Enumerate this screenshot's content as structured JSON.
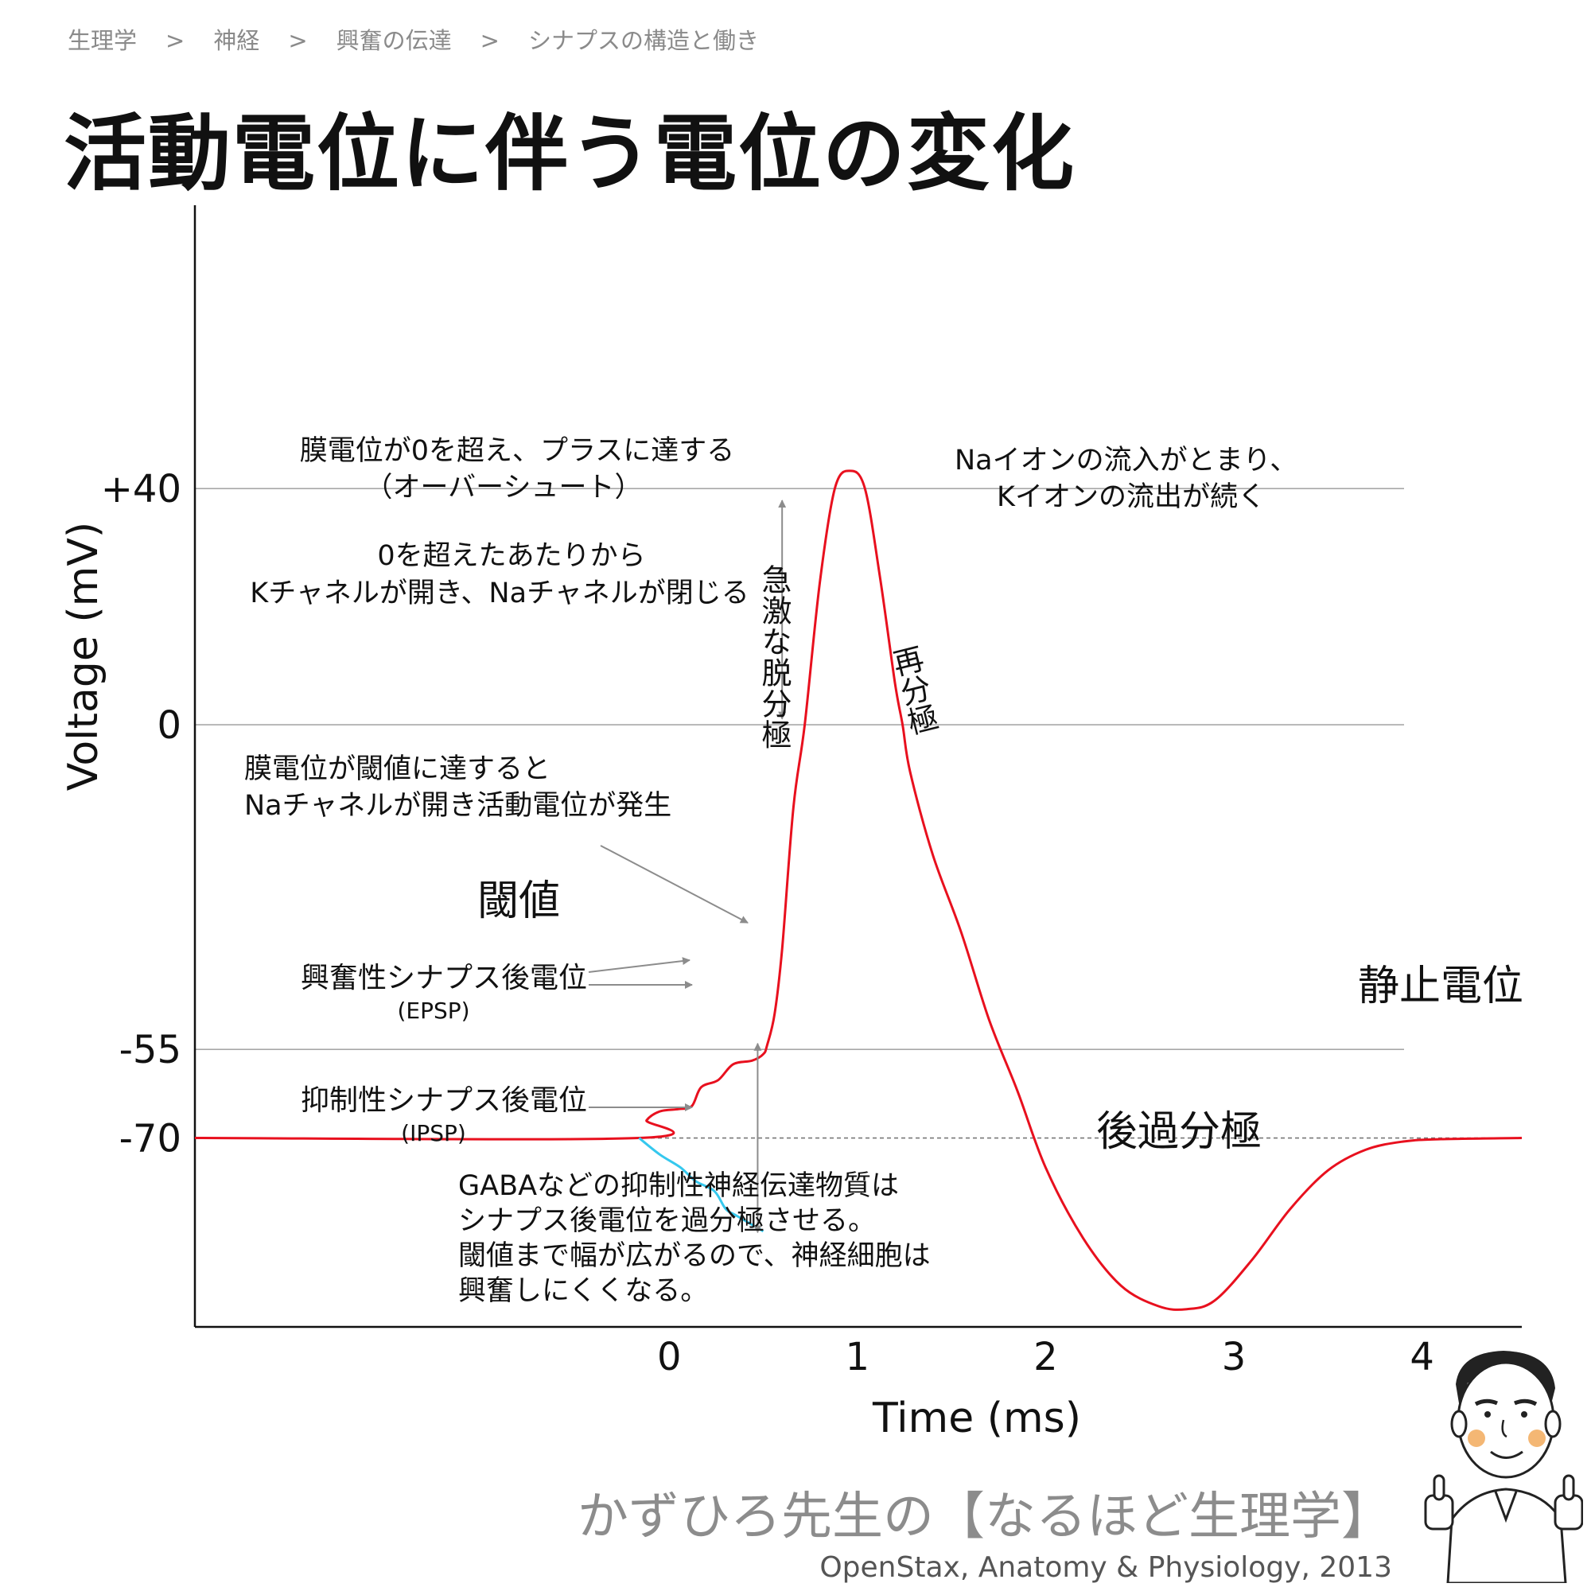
{
  "breadcrumb": [
    "生理学",
    "神経",
    "興奮の伝達",
    "シナプスの構造と働き"
  ],
  "breadcrumb_separator": ">",
  "title": "活動電位に伴う電位の変化",
  "chart_data": {
    "type": "line",
    "xlabel": "Time (ms)",
    "ylabel": "Voltage (mV)",
    "x_ticks": [
      0,
      1,
      2,
      3,
      4
    ],
    "y_ticks": [
      "+40",
      "0",
      "-55",
      "-70"
    ],
    "y_tick_values": [
      40,
      0,
      -55,
      -70
    ],
    "ylim": [
      -102,
      88
    ],
    "xlim": [
      -2.52,
      4.53
    ],
    "grid": "horizontal lines at +40, 0, -55; dashed at -70",
    "series": [
      {
        "color": "#e8101e",
        "points": [
          [
            -2.52,
            -70
          ],
          [
            -0.16,
            -70
          ],
          [
            -0.12,
            -67
          ],
          [
            -0.05,
            -65.5
          ],
          [
            0.05,
            -65.1
          ],
          [
            0.12,
            -64.6
          ],
          [
            0.17,
            -61.4
          ],
          [
            0.26,
            -60.2
          ],
          [
            0.34,
            -57.5
          ],
          [
            0.44,
            -56.9
          ],
          [
            0.5,
            -55.8
          ],
          [
            0.52,
            -54.3
          ],
          [
            0.56,
            -49
          ],
          [
            0.6,
            -38
          ],
          [
            0.66,
            -14
          ],
          [
            0.72,
            0
          ],
          [
            0.8,
            24
          ],
          [
            0.88,
            40
          ],
          [
            0.96,
            43
          ],
          [
            1.04,
            40
          ],
          [
            1.12,
            25
          ],
          [
            1.2,
            7
          ],
          [
            1.24,
            0
          ],
          [
            1.28,
            -8
          ],
          [
            1.4,
            -22
          ],
          [
            1.55,
            -35
          ],
          [
            1.7,
            -50
          ],
          [
            1.85,
            -62
          ],
          [
            2.0,
            -75
          ],
          [
            2.2,
            -87
          ],
          [
            2.4,
            -95
          ],
          [
            2.6,
            -98.5
          ],
          [
            2.75,
            -99
          ],
          [
            2.9,
            -97.5
          ],
          [
            3.1,
            -90.5
          ],
          [
            3.3,
            -82
          ],
          [
            3.5,
            -75.5
          ],
          [
            3.7,
            -72
          ],
          [
            3.9,
            -70.6
          ],
          [
            4.1,
            -70.2
          ],
          [
            4.53,
            -70
          ]
        ]
      },
      {
        "color": "#35c8ee",
        "points": [
          [
            -0.16,
            -70
          ],
          [
            -0.05,
            -72.8
          ],
          [
            0.06,
            -75
          ],
          [
            0.14,
            -77.3
          ],
          [
            0.24,
            -79
          ],
          [
            0.3,
            -82
          ],
          [
            0.36,
            -83.2
          ],
          [
            0.5,
            -85.8
          ]
        ]
      }
    ],
    "labels": {
      "threshold": "閾値",
      "resting": "静止電位",
      "depolarization": "急激な脱分極",
      "repolarization": "再分極",
      "hyperpolarization": "後過分極",
      "overshoot_1": "膜電位が0を超え、プラスに達する",
      "overshoot_2": "（オーバーシュート）",
      "channels_1": "0を超えたあたりから",
      "channels_2": "Kチャネルが開き、Naチャネルが閉じる",
      "na_k_1": "Naイオンの流入がとまり、",
      "na_k_2": "Kイオンの流出が続く",
      "threshold_note_1": "膜電位が閾値に達すると",
      "threshold_note_2": "Naチャネルが開き活動電位が発生",
      "epsp": "興奮性シナプス後電位",
      "epsp_abbr": "(EPSP)",
      "ipsp": "抑制性シナプス後電位",
      "ipsp_abbr": "(IPSP)",
      "gaba_1": "GABAなどの抑制性神経伝達物質は",
      "gaba_2": "シナプス後電位を過分極させる。",
      "gaba_3": "閾値まで幅が広がるので、神経細胞は",
      "gaba_4": "興奮しにくくなる。"
    }
  },
  "credit_main": "かずひろ先生の【なるほど生理学】",
  "credit_source": "OpenStax, Anatomy & Physiology, 2013",
  "colors": {
    "action_potential": "#e8101e",
    "ipsp": "#35c8ee",
    "gridline": "#a8a8a8",
    "annotation_arrow": "#8c8c8c",
    "credit": "#8c8c8c"
  }
}
